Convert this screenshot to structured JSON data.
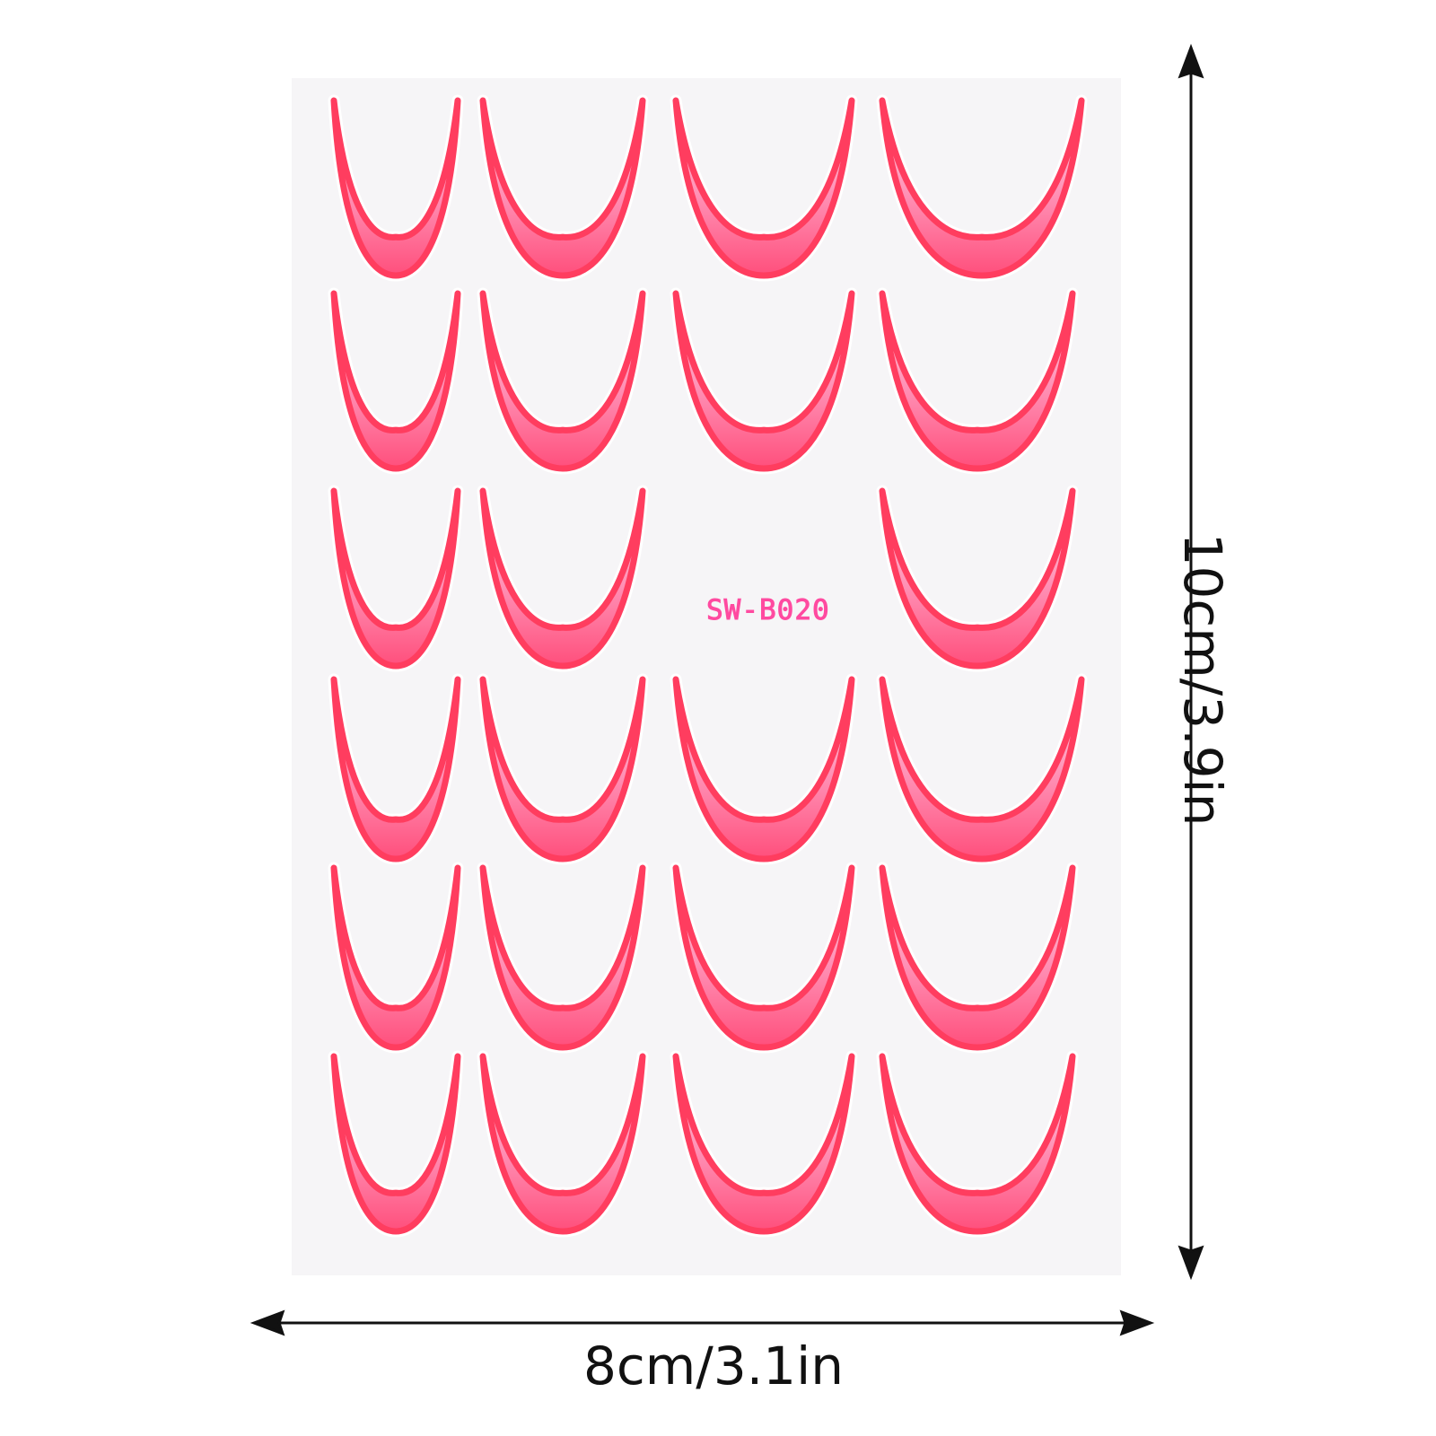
{
  "sheet": {
    "product_code": "SW-B020",
    "colors": {
      "background": "#f6f5f7",
      "outline": "#ff3d5f",
      "fill_light": "#ffd9e6",
      "fill_mid": "#ff8fb4",
      "fill_deep": "#ff4f7c",
      "code_text": "#ff4aa0"
    },
    "decal_rows": [
      [
        true,
        true,
        true,
        true
      ],
      [
        true,
        true,
        true,
        true
      ],
      [
        true,
        true,
        false,
        true
      ],
      [
        true,
        true,
        true,
        true
      ],
      [
        true,
        true,
        true,
        true
      ],
      [
        true,
        true,
        true,
        true
      ]
    ],
    "decal_shape": "french-tip-curve"
  },
  "dimensions": {
    "width_label": "8cm/3.1in",
    "height_label": "10cm/3.9in",
    "arrow_color": "#111111"
  }
}
